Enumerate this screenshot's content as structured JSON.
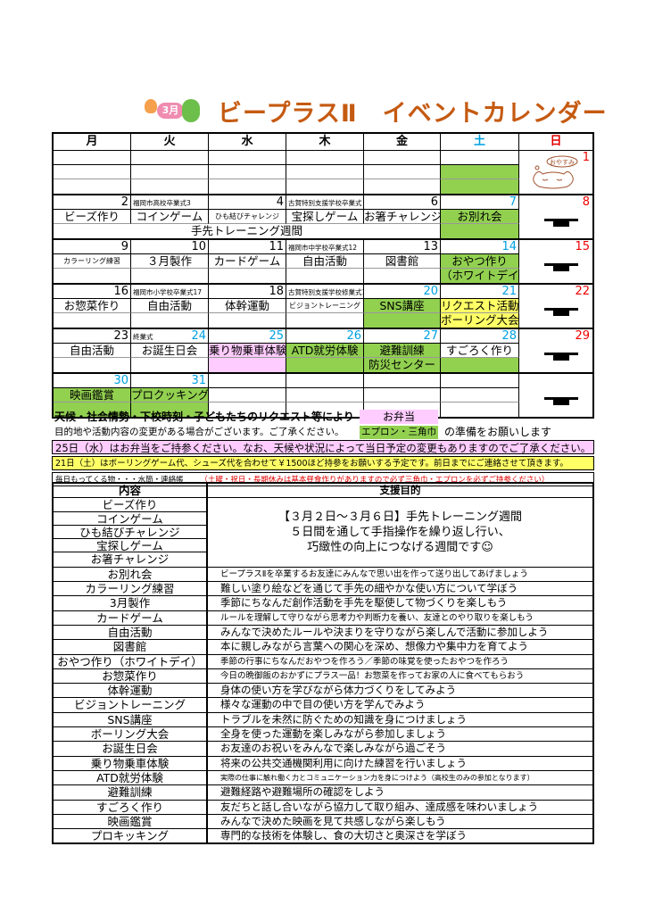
{
  "title": {
    "month_badge": "3月",
    "text": "ビープラスⅡ　イベントカレンダー"
  },
  "colors": {
    "green": "#92d050",
    "pink": "#ffccff",
    "yellow": "#ffff66",
    "blue": "#00a0e0",
    "red": "#e00000",
    "title": "#c55a11"
  },
  "calendar": {
    "weekdays": [
      {
        "label": "月",
        "color": "#000"
      },
      {
        "label": "火",
        "color": "#000"
      },
      {
        "label": "水",
        "color": "#000"
      },
      {
        "label": "木",
        "color": "#000"
      },
      {
        "label": "金",
        "color": "#000"
      },
      {
        "label": "土",
        "color": "#00a0e0"
      },
      {
        "label": "日",
        "color": "#e00000"
      }
    ],
    "weeks": [
      {
        "days": [
          {
            "date": "",
            "note": "",
            "rows": [
              "",
              ""
            ],
            "fill": [
              "",
              ""
            ]
          },
          {
            "date": "",
            "note": "",
            "rows": [
              "",
              ""
            ],
            "fill": [
              "",
              ""
            ]
          },
          {
            "date": "",
            "note": "",
            "rows": [
              "",
              ""
            ],
            "fill": [
              "",
              ""
            ]
          },
          {
            "date": "",
            "note": "",
            "rows": [
              "",
              ""
            ],
            "fill": [
              "",
              ""
            ]
          },
          {
            "date": "",
            "note": "",
            "rows": [
              "",
              ""
            ],
            "fill": [
              "",
              ""
            ]
          },
          {
            "date": "",
            "note": "",
            "rows": [
              "",
              ""
            ],
            "fill": [
              "green",
              "green"
            ]
          }
        ],
        "sunday": {
          "date": "1",
          "icon": "sleeping-cat-icon",
          "label": "おやすみ"
        }
      },
      {
        "days": [
          {
            "date": "2",
            "note": "",
            "rows": [
              "ビーズ作り",
              ""
            ],
            "fill": [
              "",
              ""
            ]
          },
          {
            "date": "",
            "note": "福岡市高校卒業式3",
            "rows": [
              "コインゲーム",
              ""
            ],
            "fill": [
              "",
              ""
            ]
          },
          {
            "date": "4",
            "note": "",
            "rows": [
              "ひも結びチャレンジ",
              ""
            ],
            "fill": [
              "",
              ""
            ],
            "small": true
          },
          {
            "date": "",
            "note": "古賀特別支援学校卒業式５",
            "rows": [
              "宝探しゲーム",
              ""
            ],
            "fill": [
              "",
              ""
            ]
          },
          {
            "date": "6",
            "note": "",
            "rows": [
              "お箸チャレンジ",
              ""
            ],
            "fill": [
              "",
              ""
            ]
          },
          {
            "date": "7",
            "dateColor": "blue",
            "note": "",
            "rows": [
              "お別れ会",
              ""
            ],
            "fill": [
              "green",
              "green"
            ]
          }
        ],
        "span": "手先トレーニング週間",
        "sunday": {
          "date": "8",
          "icon": "closed-icon"
        }
      },
      {
        "days": [
          {
            "date": "9",
            "note": "",
            "rows": [
              "カラーリング練習",
              ""
            ],
            "fill": [
              "",
              ""
            ],
            "small": true
          },
          {
            "date": "10",
            "note": "",
            "rows": [
              "３月製作",
              ""
            ],
            "fill": [
              "",
              ""
            ]
          },
          {
            "date": "11",
            "note": "",
            "rows": [
              "カードゲーム",
              ""
            ],
            "fill": [
              "",
              ""
            ]
          },
          {
            "date": "",
            "note": "福岡市中学校卒業式12",
            "rows": [
              "自由活動",
              ""
            ],
            "fill": [
              "",
              ""
            ]
          },
          {
            "date": "13",
            "note": "",
            "rows": [
              "図書館",
              ""
            ],
            "fill": [
              "",
              ""
            ]
          },
          {
            "date": "14",
            "dateColor": "blue",
            "note": "",
            "rows": [
              "おやつ作り",
              "（ホワイトデイ）"
            ],
            "fill": [
              "green",
              "green"
            ]
          }
        ],
        "sunday": {
          "date": "15",
          "icon": "closed-icon"
        }
      },
      {
        "days": [
          {
            "date": "16",
            "note": "",
            "rows": [
              "お惣菜作り",
              ""
            ],
            "fill": [
              "",
              ""
            ]
          },
          {
            "date": "",
            "note": "福岡市小学校卒業式17",
            "rows": [
              "自由活動",
              ""
            ],
            "fill": [
              "",
              ""
            ]
          },
          {
            "date": "18",
            "note": "",
            "rows": [
              "体幹運動",
              ""
            ],
            "fill": [
              "",
              ""
            ]
          },
          {
            "date": "",
            "note": "古賀特別支援学校修業式19",
            "rows": [
              "ビジョントレーニング",
              ""
            ],
            "fill": [
              "",
              ""
            ],
            "small": true
          },
          {
            "date": "20",
            "dateColor": "blue",
            "note": "",
            "rows": [
              "SNS講座",
              ""
            ],
            "fill": [
              "green",
              "green"
            ]
          },
          {
            "date": "21",
            "dateColor": "blue",
            "note": "",
            "rows": [
              "リクエスト活動",
              "ボーリング大会"
            ],
            "fill": [
              "yellow",
              "yellow"
            ]
          }
        ],
        "sunday": {
          "date": "22",
          "icon": "closed-icon"
        }
      },
      {
        "days": [
          {
            "date": "23",
            "note": "",
            "rows": [
              "自由活動",
              ""
            ],
            "fill": [
              "",
              ""
            ]
          },
          {
            "date": "24",
            "dateColor": "blue",
            "note": "終業式",
            "rows": [
              "お誕生日会",
              ""
            ],
            "fill": [
              "",
              ""
            ]
          },
          {
            "date": "25",
            "dateColor": "blue",
            "note": "",
            "rows": [
              "乗り物乗車体験",
              ""
            ],
            "fill": [
              "pink",
              "pink"
            ]
          },
          {
            "date": "26",
            "dateColor": "blue",
            "note": "",
            "rows": [
              "ATD就労体験",
              ""
            ],
            "fill": [
              "green",
              "green"
            ]
          },
          {
            "date": "27",
            "dateColor": "blue",
            "note": "",
            "rows": [
              "避難訓練",
              "防災センター"
            ],
            "fill": [
              "green",
              "green"
            ]
          },
          {
            "date": "28",
            "dateColor": "blue",
            "note": "",
            "rows": [
              "すごろく作り",
              ""
            ],
            "fill": [
              "",
              "green"
            ]
          }
        ],
        "sunday": {
          "date": "29",
          "icon": "closed-icon"
        }
      },
      {
        "days": [
          {
            "date": "30",
            "dateColor": "blue",
            "note": "",
            "rows": [
              "映画鑑賞",
              ""
            ],
            "fill": [
              "green",
              "green"
            ]
          },
          {
            "date": "31",
            "dateColor": "blue",
            "note": "",
            "rows": [
              "プロクッキング",
              ""
            ],
            "fill": [
              "green",
              "green"
            ]
          },
          {
            "date": "",
            "note": "",
            "rows": [
              "",
              ""
            ],
            "fill": [
              "",
              ""
            ]
          },
          {
            "date": "",
            "note": "",
            "rows": [
              "",
              ""
            ],
            "fill": [
              "",
              ""
            ]
          },
          {
            "date": "",
            "note": "",
            "rows": [
              "",
              ""
            ],
            "fill": [
              "",
              ""
            ]
          },
          {
            "date": "",
            "note": "",
            "rows": [
              "",
              ""
            ],
            "fill": [
              "",
              ""
            ]
          }
        ],
        "sunday": {
          "date": "",
          "icon": "closed-icon"
        }
      }
    ]
  },
  "notes": {
    "line1": "天候・社会情勢・下校時刻・子どもたちのリクエスト等により",
    "bento": "お弁当",
    "line2": "目的地や活動内容の変更がある場合がございます。ご了承ください。",
    "apron": "エプロン・三角巾",
    "prepare": "の準備をお願いします",
    "pink_notice": "25日（水）はお弁当をご持参ください。なお、天候や状況によって当日予定の変更もありますのでご了承ください。",
    "yellow_notice": "21日（土）はボーリングゲーム代、シューズ代を合わせて￥1500ほど持参をお願いする予定です。前日までにご連絡させて頂きます。",
    "daily_items": "毎日もってくる物・・・水筒・連絡帳",
    "red_notice": "（土曜・祝日・長期休みは基本昼食作りがありますので必ず三角巾・エプロンを必ずご持参ください）"
  },
  "purpose_table": {
    "headers": [
      "内容",
      "支援目的"
    ],
    "training_week": {
      "names": [
        "ビーズ作り",
        "コインゲーム",
        "ひも結びチャレンジ",
        "宝探しゲーム",
        "お箸チャレンジ"
      ],
      "purpose": [
        "【３月２日～３月６日】手先トレーニング週間",
        "５日間を通して手指操作を繰り返し行い、",
        "巧緻性の向上につなげる週間です☺"
      ]
    },
    "rows": [
      {
        "name": "お別れ会",
        "purpose": "ビープラスⅡを卒業するお友達にみんなで思い出を作って送り出してあげましょう",
        "small": true
      },
      {
        "name": "カラーリング練習",
        "purpose": "難しい塗り絵などを通じて手先の細やかな使い方について学ぼう"
      },
      {
        "name": "3月製作",
        "purpose": "季節にちなんだ創作活動を手先を駆使して物づくりを楽しもう"
      },
      {
        "name": "カードゲーム",
        "purpose": "ルールを理解して守りながら思考力や判断力を養い、友達とのやり取りを楽しもう",
        "small": true
      },
      {
        "name": "自由活動",
        "purpose": "みんなで決めたルールや決まりを守りながら楽しんで活動に参加しよう"
      },
      {
        "name": "図書館",
        "purpose": "本に親しみながら言葉への関心を深め、想像力や集中力を育てよう"
      },
      {
        "name": "おやつ作り（ホワイトデイ）",
        "purpose": "季節の行事にちなんだおやつを作ろう／季節の味覚を使ったおやつを作ろう",
        "small": true
      },
      {
        "name": "お惣菜作り",
        "purpose": "今日の晩御飯のおかずにプラス一品！お惣菜を作ってお家の人に食べてもらおう",
        "small": true
      },
      {
        "name": "体幹運動",
        "purpose": "身体の使い方を学びながら体力づくりをしてみよう"
      },
      {
        "name": "ビジョントレーニング",
        "purpose": "様々な運動の中で目の使い方を学んでみよう"
      },
      {
        "name": "SNS講座",
        "purpose": "トラブルを未然に防ぐための知識を身につけましょう"
      },
      {
        "name": "ボーリング大会",
        "purpose": "全身を使った運動を楽しみながら参加しましょう"
      },
      {
        "name": "お誕生日会",
        "purpose": "お友達のお祝いをみんなで楽しみながら過ごそう"
      },
      {
        "name": "乗り物乗車体験",
        "purpose": "将来の公共交通機関利用に向けた練習を行いましょう"
      },
      {
        "name": "ATD就労体験",
        "purpose": "実際の仕事に触れ働く力とコミュニケーション力を身につけよう（高校生のみの参加となります）",
        "tiny": true
      },
      {
        "name": "避難訓練",
        "purpose": "避難経路や避難場所の確認をしよう"
      },
      {
        "name": "すごろく作り",
        "purpose": "友だちと話し合いながら協力して取り組み、達成感を味わいましょう"
      },
      {
        "name": "映画鑑賞",
        "purpose": "みんなで決めた映画を見て共感しながら楽しもう"
      },
      {
        "name": "プロキッキング",
        "purpose": "専門的な技術を体験し、食の大切さと奥深さを学ぼう"
      }
    ]
  }
}
